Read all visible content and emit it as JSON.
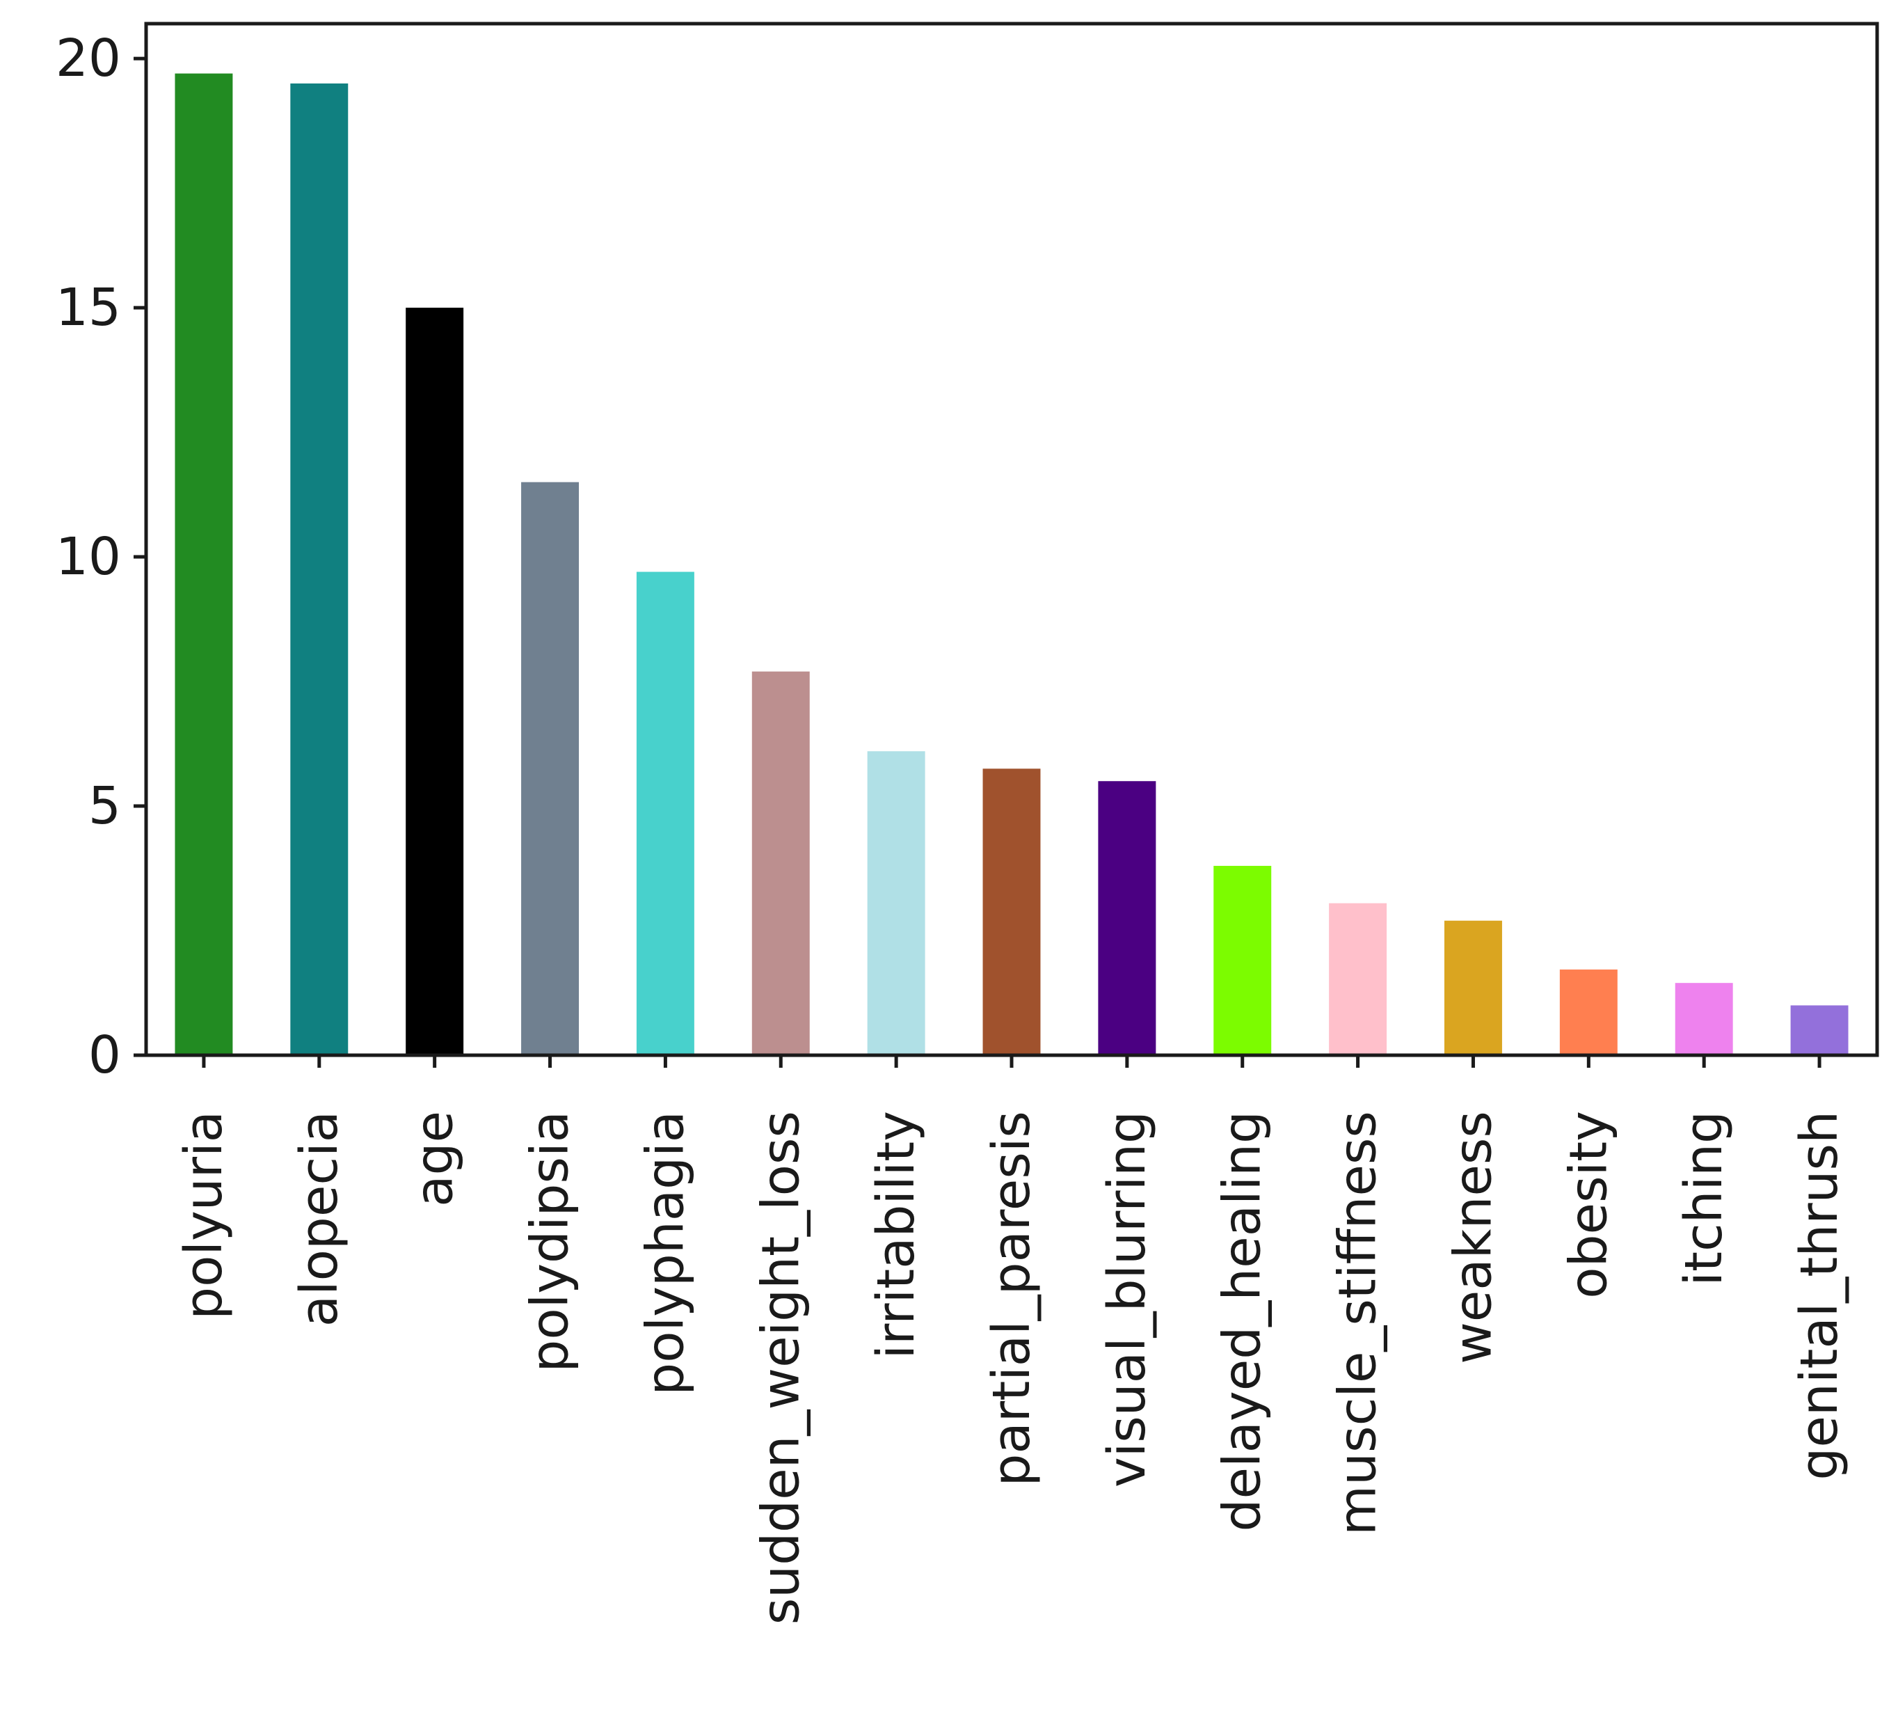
{
  "chart_data": {
    "type": "bar",
    "title": "",
    "xlabel": "",
    "ylabel": "",
    "ylim": [
      0,
      20.7
    ],
    "yticks": [
      0,
      5,
      10,
      15,
      20
    ],
    "grid": false,
    "legend": "none",
    "categories": [
      "polyuria",
      "alopecia",
      "age",
      "polydipsia",
      "polyphagia",
      "sudden_weight_loss",
      "irritability",
      "partial_paresis",
      "visual_blurring",
      "delayed_healing",
      "muscle_stiffness",
      "weakness",
      "obesity",
      "itching",
      "genital_thrush"
    ],
    "values": [
      19.7,
      19.5,
      15.0,
      11.5,
      9.7,
      7.7,
      6.1,
      5.75,
      5.5,
      3.8,
      3.05,
      2.7,
      1.72,
      1.45,
      1.0
    ],
    "colors": [
      "#228b22",
      "#108080",
      "#000000",
      "#708090",
      "#48d1cc",
      "#bc8f8f",
      "#b0e0e6",
      "#a0522d",
      "#4b0082",
      "#7cfc00",
      "#ffc0cb",
      "#daa520",
      "#ff7f50",
      "#ee82ee",
      "#9370db"
    ]
  }
}
